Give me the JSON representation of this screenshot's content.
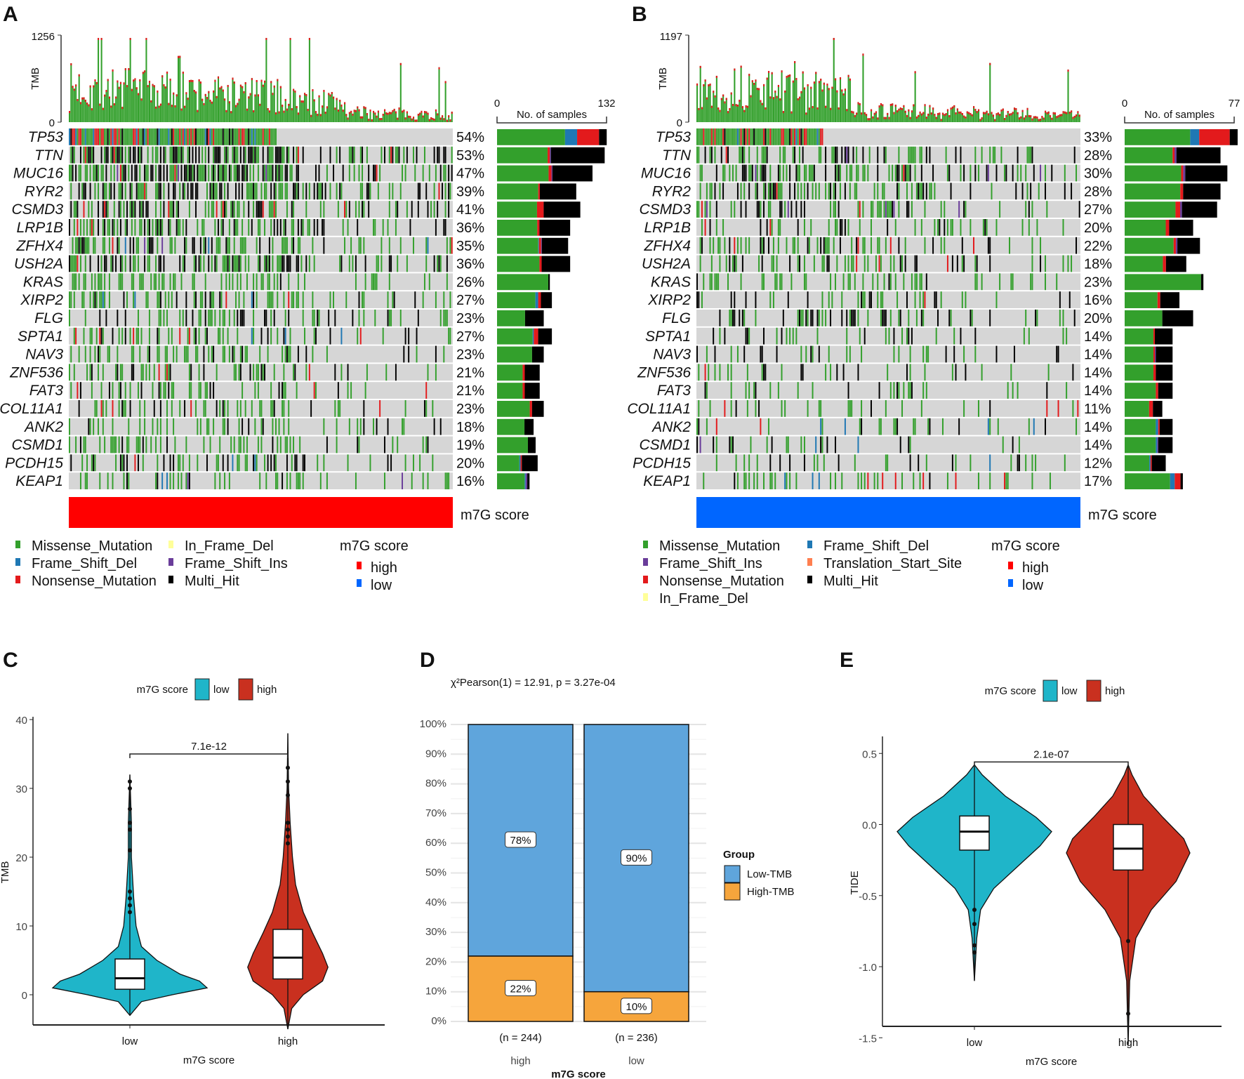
{
  "panels": {
    "A": {
      "label": "A",
      "tmb_axis": {
        "title": "TMB",
        "max": "1256",
        "min": "0"
      },
      "samples_axis": {
        "title": "No. of samples",
        "min": "0",
        "max": "132",
        "max_value": 132
      },
      "n_columns": 240,
      "annotation_label": "m7G score",
      "annotation_color": "#ff0000",
      "genes": [
        "TP53",
        "TTN",
        "MUC16",
        "RYR2",
        "CSMD3",
        "LRP1B",
        "ZFHX4",
        "USH2A",
        "KRAS",
        "XIRP2",
        "FLG",
        "SPTA1",
        "NAV3",
        "ZNF536",
        "FAT3",
        "COL11A1",
        "ANK2",
        "CSMD1",
        "PCDH15",
        "KEAP1"
      ],
      "percents": [
        "54%",
        "53%",
        "47%",
        "39%",
        "41%",
        "36%",
        "35%",
        "36%",
        "26%",
        "27%",
        "23%",
        "27%",
        "23%",
        "21%",
        "21%",
        "23%",
        "18%",
        "19%",
        "20%",
        "16%"
      ],
      "pct_values": [
        54,
        53,
        47,
        39,
        41,
        36,
        35,
        36,
        26,
        27,
        23,
        27,
        23,
        21,
        21,
        23,
        18,
        19,
        20,
        16
      ],
      "bar_composition": [
        [
          0.62,
          0.11,
          0.2,
          0,
          0.07
        ],
        [
          0.47,
          0,
          0.02,
          0.01,
          0.5
        ],
        [
          0.54,
          0,
          0.03,
          0.01,
          0.42
        ],
        [
          0.52,
          0,
          0.02,
          0,
          0.46
        ],
        [
          0.48,
          0,
          0.08,
          0,
          0.44
        ],
        [
          0.55,
          0,
          0.03,
          0,
          0.42
        ],
        [
          0.58,
          0.01,
          0.03,
          0.01,
          0.37
        ],
        [
          0.58,
          0,
          0.03,
          0,
          0.39
        ],
        [
          0.97,
          0,
          0,
          0,
          0.03
        ],
        [
          0.7,
          0.05,
          0.05,
          0,
          0.2
        ],
        [
          0.6,
          0,
          0,
          0,
          0.4
        ],
        [
          0.65,
          0.02,
          0.08,
          0,
          0.25
        ],
        [
          0.75,
          0,
          0,
          0,
          0.25
        ],
        [
          0.6,
          0,
          0.05,
          0,
          0.35
        ],
        [
          0.6,
          0,
          0.05,
          0,
          0.35
        ],
        [
          0.7,
          0,
          0.05,
          0,
          0.25
        ],
        [
          0.75,
          0,
          0,
          0,
          0.25
        ],
        [
          0.8,
          0,
          0,
          0,
          0.2
        ],
        [
          0.55,
          0.03,
          0.03,
          0,
          0.39
        ],
        [
          0.85,
          0.03,
          0,
          0.05,
          0.07
        ]
      ],
      "legend": {
        "items": [
          {
            "label": "Missense_Mutation",
            "color": "#33a02c"
          },
          {
            "label": "Frame_Shift_Del",
            "color": "#1f78b4"
          },
          {
            "label": "Nonsense_Mutation",
            "color": "#e31a1c"
          },
          {
            "label": "In_Frame_Del",
            "color": "#ffff99"
          },
          {
            "label": "Frame_Shift_Ins",
            "color": "#6a3d9a"
          },
          {
            "label": "Multi_Hit",
            "color": "#000000"
          }
        ],
        "score_title": "m7G score",
        "score_items": [
          {
            "label": "high",
            "color": "#ff0000"
          },
          {
            "label": "low",
            "color": "#0066ff"
          }
        ]
      }
    },
    "B": {
      "label": "B",
      "tmb_axis": {
        "title": "TMB",
        "max": "1197",
        "min": "0"
      },
      "samples_axis": {
        "title": "No. of samples",
        "min": "0",
        "max": "77",
        "max_value": 77
      },
      "n_columns": 236,
      "annotation_label": "m7G score",
      "annotation_color": "#0066ff",
      "genes": [
        "TP53",
        "TTN",
        "MUC16",
        "RYR2",
        "CSMD3",
        "LRP1B",
        "ZFHX4",
        "USH2A",
        "KRAS",
        "XIRP2",
        "FLG",
        "SPTA1",
        "NAV3",
        "ZNF536",
        "FAT3",
        "COL11A1",
        "ANK2",
        "CSMD1",
        "PCDH15",
        "KEAP1"
      ],
      "percents": [
        "33%",
        "28%",
        "30%",
        "28%",
        "27%",
        "20%",
        "22%",
        "18%",
        "23%",
        "16%",
        "20%",
        "14%",
        "14%",
        "14%",
        "14%",
        "11%",
        "14%",
        "14%",
        "12%",
        "17%"
      ],
      "pct_values": [
        33,
        28,
        30,
        28,
        27,
        20,
        22,
        18,
        23,
        16,
        20,
        14,
        14,
        14,
        14,
        11,
        14,
        14,
        12,
        17
      ],
      "bar_composition": [
        [
          0.58,
          0.08,
          0.27,
          0,
          0.07
        ],
        [
          0.5,
          0,
          0.02,
          0.02,
          0.46
        ],
        [
          0.55,
          0,
          0.02,
          0.02,
          0.41
        ],
        [
          0.58,
          0,
          0.03,
          0,
          0.39
        ],
        [
          0.55,
          0,
          0.05,
          0.02,
          0.38
        ],
        [
          0.6,
          0,
          0.05,
          0,
          0.35
        ],
        [
          0.65,
          0,
          0.03,
          0.02,
          0.3
        ],
        [
          0.62,
          0,
          0.05,
          0,
          0.33
        ],
        [
          0.97,
          0,
          0,
          0,
          0.03
        ],
        [
          0.6,
          0,
          0.05,
          0,
          0.35
        ],
        [
          0.55,
          0,
          0,
          0,
          0.45
        ],
        [
          0.6,
          0,
          0.03,
          0,
          0.37
        ],
        [
          0.6,
          0,
          0.03,
          0.02,
          0.35
        ],
        [
          0.6,
          0,
          0.05,
          0,
          0.35
        ],
        [
          0.65,
          0,
          0.05,
          0,
          0.3
        ],
        [
          0.65,
          0,
          0.1,
          0,
          0.25
        ],
        [
          0.65,
          0.05,
          0.03,
          0,
          0.27
        ],
        [
          0.65,
          0.03,
          0,
          0.02,
          0.3
        ],
        [
          0.6,
          0.03,
          0.03,
          0,
          0.34
        ],
        [
          0.78,
          0.08,
          0.1,
          0,
          0.04
        ]
      ],
      "legend": {
        "items": [
          {
            "label": "Missense_Mutation",
            "color": "#33a02c"
          },
          {
            "label": "Frame_Shift_Ins",
            "color": "#6a3d9a"
          },
          {
            "label": "Nonsense_Mutation",
            "color": "#e31a1c"
          },
          {
            "label": "In_Frame_Del",
            "color": "#ffff99"
          },
          {
            "label": "Frame_Shift_Del",
            "color": "#1f78b4"
          },
          {
            "label": "Translation_Start_Site",
            "color": "#ff7f50"
          },
          {
            "label": "Multi_Hit",
            "color": "#000000"
          }
        ],
        "score_title": "m7G score",
        "score_items": [
          {
            "label": "high",
            "color": "#ff0000"
          },
          {
            "label": "low",
            "color": "#0066ff"
          }
        ]
      }
    }
  },
  "chart_data": [
    {
      "panel": "C",
      "type": "violin",
      "legend_title": "m7G score",
      "legend": [
        "low",
        "high"
      ],
      "xlabel": "m7G score",
      "ylabel": "TMB",
      "categories": [
        "low",
        "high"
      ],
      "colors": [
        "#1fb5c9",
        "#c9301f"
      ],
      "ylim": [
        -6,
        40
      ],
      "yticks": [
        "0",
        "10",
        "20",
        "30",
        "40"
      ],
      "ytick_values": [
        0,
        10,
        20,
        30,
        40
      ],
      "p_value": "7.1e-12",
      "bracket_y": 35,
      "box": [
        {
          "q1": 0.8,
          "median": 2.4,
          "q3": 5.2,
          "lo": -3,
          "hi": 32
        },
        {
          "q1": 2.3,
          "median": 5.4,
          "q3": 9.5,
          "lo": -5,
          "hi": 38
        }
      ],
      "density": [
        [
          [
            -3,
            0
          ],
          [
            -1,
            0.15
          ],
          [
            0,
            0.55
          ],
          [
            1,
            1
          ],
          [
            2,
            0.9
          ],
          [
            3,
            0.65
          ],
          [
            5,
            0.35
          ],
          [
            7,
            0.15
          ],
          [
            10,
            0.08
          ],
          [
            14,
            0.05
          ],
          [
            20,
            0.02
          ],
          [
            25,
            0.02
          ],
          [
            32,
            0
          ]
        ],
        [
          [
            -5,
            0
          ],
          [
            -2,
            0.05
          ],
          [
            0,
            0.2
          ],
          [
            2,
            0.45
          ],
          [
            4,
            0.52
          ],
          [
            6,
            0.45
          ],
          [
            9,
            0.32
          ],
          [
            12,
            0.2
          ],
          [
            16,
            0.1
          ],
          [
            20,
            0.06
          ],
          [
            25,
            0.03
          ],
          [
            30,
            0.01
          ],
          [
            38,
            0
          ]
        ]
      ],
      "outliers": [
        [
          1,
          [
            12,
            13,
            14,
            15,
            21,
            24,
            25,
            27,
            30,
            31
          ]
        ],
        [
          2,
          [
            22,
            23,
            24,
            25,
            29,
            31,
            33
          ]
        ]
      ]
    },
    {
      "panel": "D",
      "type": "bar",
      "title": "χ²Pearson(1) = 12.91, p = 3.27e-04",
      "xlabel": "m7G score",
      "categories": [
        "high",
        "low"
      ],
      "n_labels": [
        "(n = 244)",
        "(n = 236)"
      ],
      "legend_title": "Group",
      "series": [
        {
          "name": "Low-TMB",
          "color": "#5fa5dc",
          "values": [
            78,
            90
          ],
          "labels": [
            "78%",
            "90%"
          ]
        },
        {
          "name": "High-TMB",
          "color": "#f6a53c",
          "values": [
            22,
            10
          ],
          "labels": [
            "22%",
            "10%"
          ]
        }
      ],
      "ylim": [
        0,
        100
      ],
      "yticks": [
        "0%",
        "10%",
        "20%",
        "30%",
        "40%",
        "50%",
        "60%",
        "70%",
        "80%",
        "90%",
        "100%"
      ]
    },
    {
      "panel": "E",
      "type": "violin",
      "legend_title": "m7G score",
      "legend": [
        "low",
        "high"
      ],
      "xlabel": "m7G score",
      "ylabel": "TIDE",
      "categories": [
        "low",
        "high"
      ],
      "colors": [
        "#1fb5c9",
        "#c9301f"
      ],
      "ylim": [
        -1.6,
        0.6
      ],
      "yticks": [
        "0.5",
        "0.0",
        "-0.5",
        "-1.0",
        "-1.5"
      ],
      "ytick_values": [
        0.5,
        0,
        -0.5,
        -1,
        -1.5
      ],
      "p_value": "2.1e-07",
      "bracket_y": 0.44,
      "box": [
        {
          "q1": -0.18,
          "median": -0.05,
          "q3": 0.06,
          "lo": -1.1,
          "hi": 0.42
        },
        {
          "q1": -0.32,
          "median": -0.17,
          "q3": 0.0,
          "lo": -1.55,
          "hi": 0.42
        }
      ],
      "density": [
        [
          [
            -1.1,
            0
          ],
          [
            -0.8,
            0.03
          ],
          [
            -0.6,
            0.08
          ],
          [
            -0.45,
            0.25
          ],
          [
            -0.3,
            0.55
          ],
          [
            -0.15,
            0.85
          ],
          [
            -0.05,
            1
          ],
          [
            0.05,
            0.8
          ],
          [
            0.2,
            0.4
          ],
          [
            0.35,
            0.1
          ],
          [
            0.42,
            0
          ]
        ],
        [
          [
            -1.55,
            0
          ],
          [
            -1.1,
            0.02
          ],
          [
            -0.8,
            0.1
          ],
          [
            -0.6,
            0.3
          ],
          [
            -0.4,
            0.62
          ],
          [
            -0.2,
            0.8
          ],
          [
            -0.1,
            0.72
          ],
          [
            0.05,
            0.45
          ],
          [
            0.2,
            0.2
          ],
          [
            0.35,
            0.05
          ],
          [
            0.42,
            0
          ]
        ]
      ],
      "outliers": [
        [
          1,
          [
            -0.6,
            -0.7,
            -0.85,
            -0.9
          ]
        ],
        [
          2,
          [
            -0.82,
            -1.33
          ]
        ]
      ]
    }
  ]
}
